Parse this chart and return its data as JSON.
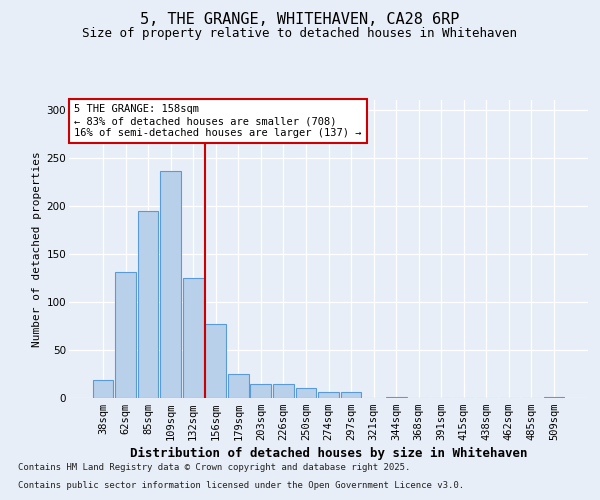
{
  "title1": "5, THE GRANGE, WHITEHAVEN, CA28 6RP",
  "title2": "Size of property relative to detached houses in Whitehaven",
  "xlabel": "Distribution of detached houses by size in Whitehaven",
  "ylabel": "Number of detached properties",
  "bar_labels": [
    "38sqm",
    "62sqm",
    "85sqm",
    "109sqm",
    "132sqm",
    "156sqm",
    "179sqm",
    "203sqm",
    "226sqm",
    "250sqm",
    "274sqm",
    "297sqm",
    "321sqm",
    "344sqm",
    "368sqm",
    "391sqm",
    "415sqm",
    "438sqm",
    "462sqm",
    "485sqm",
    "509sqm"
  ],
  "bar_values": [
    18,
    131,
    194,
    236,
    125,
    77,
    24,
    14,
    14,
    10,
    6,
    6,
    0,
    1,
    0,
    0,
    0,
    0,
    0,
    0,
    1
  ],
  "bar_color": "#b8d0ea",
  "bar_edge_color": "#5b9bd5",
  "vline_x_index": 5,
  "vline_color": "#cc0000",
  "annotation_title": "5 THE GRANGE: 158sqm",
  "annotation_line1": "← 83% of detached houses are smaller (708)",
  "annotation_line2": "16% of semi-detached houses are larger (137) →",
  "ylim": [
    0,
    310
  ],
  "yticks": [
    0,
    50,
    100,
    150,
    200,
    250,
    300
  ],
  "footer_line1": "Contains HM Land Registry data © Crown copyright and database right 2025.",
  "footer_line2": "Contains public sector information licensed under the Open Government Licence v3.0.",
  "bg_color": "#e8eef7",
  "plot_bg_color": "#e8eef7",
  "title1_fontsize": 11,
  "title2_fontsize": 9,
  "xlabel_fontsize": 9,
  "ylabel_fontsize": 8,
  "tick_fontsize": 7.5,
  "annotation_fontsize": 7.5,
  "footer_fontsize": 6.5
}
